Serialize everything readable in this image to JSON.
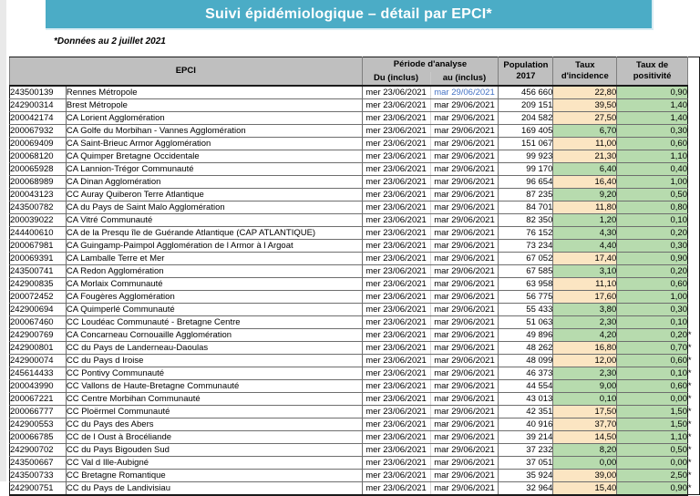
{
  "title": "Suivi épidémiologique – détail par EPCI*",
  "subtitle": "*Données au 2 juillet 2021",
  "colors": {
    "banner": "#4BACC6",
    "header_bg": "#BFBFBF",
    "incidence_alert_fill": "#FBE5C2",
    "rate_ok_fill": "#B7DBAE",
    "highlight_date_blue": "#4472C4"
  },
  "table": {
    "asterisk_symbol": "*",
    "headers": {
      "epci": "EPCI",
      "periode": "Période d'analyse",
      "du": "Du (inclus)",
      "au": "au (inclus)",
      "population_l1": "Population",
      "population_l2": "2017",
      "incidence_l1": "Taux",
      "incidence_l2": "d'incidence",
      "positivite_l1": "Taux de",
      "positivite_l2": "positivité"
    },
    "rows": [
      {
        "code": "243500139",
        "name": "Rennes Métropole",
        "du": "mer 23/06/2021",
        "au": "mar 29/06/2021",
        "au_blue": true,
        "population": "456 660",
        "incidence": "22,80",
        "incidence_level": "high",
        "positivite": "0,90",
        "asterisk": false
      },
      {
        "code": "242900314",
        "name": "Brest Métropole",
        "du": "mer 23/06/2021",
        "au": "mar 29/06/2021",
        "population": "209 151",
        "incidence": "39,50",
        "incidence_level": "high",
        "positivite": "1,40",
        "asterisk": false
      },
      {
        "code": "200042174",
        "name": "CA Lorient Agglomération",
        "du": "mer 23/06/2021",
        "au": "mar 29/06/2021",
        "population": "204 582",
        "incidence": "27,50",
        "incidence_level": "high",
        "positivite": "1,40",
        "asterisk": false
      },
      {
        "code": "200067932",
        "name": "CA Golfe du Morbihan - Vannes Agglomération",
        "du": "mer 23/06/2021",
        "au": "mar 29/06/2021",
        "population": "169 405",
        "incidence": "6,70",
        "incidence_level": "low",
        "positivite": "0,30",
        "asterisk": false
      },
      {
        "code": "200069409",
        "name": "CA Saint-Brieuc Armor Agglomération",
        "du": "mer 23/06/2021",
        "au": "mar 29/06/2021",
        "population": "151 067",
        "incidence": "11,00",
        "incidence_level": "high",
        "positivite": "0,60",
        "asterisk": false
      },
      {
        "code": "200068120",
        "name": "CA Quimper Bretagne Occidentale",
        "du": "mer 23/06/2021",
        "au": "mar 29/06/2021",
        "population": "99 923",
        "incidence": "21,30",
        "incidence_level": "high",
        "positivite": "1,10",
        "asterisk": false
      },
      {
        "code": "200065928",
        "name": "CA Lannion-Trégor Communauté",
        "du": "mer 23/06/2021",
        "au": "mar 29/06/2021",
        "population": "99 170",
        "incidence": "6,40",
        "incidence_level": "low",
        "positivite": "0,40",
        "asterisk": false
      },
      {
        "code": "200068989",
        "name": "CA Dinan Agglomération",
        "du": "mer 23/06/2021",
        "au": "mar 29/06/2021",
        "population": "96 654",
        "incidence": "16,40",
        "incidence_level": "high",
        "positivite": "1,00",
        "asterisk": false
      },
      {
        "code": "200043123",
        "name": "CC Auray Quiberon Terre Atlantique",
        "du": "mer 23/06/2021",
        "au": "mar 29/06/2021",
        "population": "87 235",
        "incidence": "9,20",
        "incidence_level": "low",
        "positivite": "0,50",
        "asterisk": false
      },
      {
        "code": "243500782",
        "name": "CA du Pays de Saint Malo Agglomération",
        "du": "mer 23/06/2021",
        "au": "mar 29/06/2021",
        "population": "84 701",
        "incidence": "11,80",
        "incidence_level": "high",
        "positivite": "0,80",
        "asterisk": false
      },
      {
        "code": "200039022",
        "name": "CA Vitré Communauté",
        "du": "mer 23/06/2021",
        "au": "mar 29/06/2021",
        "population": "82 350",
        "incidence": "1,20",
        "incidence_level": "low",
        "positivite": "0,10",
        "asterisk": false
      },
      {
        "code": "244400610",
        "name": "CA de la Presqu île de Guérande Atlantique (CAP ATLANTIQUE)",
        "du": "mer 23/06/2021",
        "au": "mar 29/06/2021",
        "population": "76 152",
        "incidence": "4,30",
        "incidence_level": "low",
        "positivite": "0,20",
        "asterisk": false
      },
      {
        "code": "200067981",
        "name": "CA Guingamp-Paimpol Agglomération de l Armor à  l Argoat",
        "du": "mer 23/06/2021",
        "au": "mar 29/06/2021",
        "population": "73 234",
        "incidence": "4,40",
        "incidence_level": "low",
        "positivite": "0,30",
        "asterisk": false
      },
      {
        "code": "200069391",
        "name": "CA Lamballe Terre et Mer",
        "du": "mer 23/06/2021",
        "au": "mar 29/06/2021",
        "population": "67 052",
        "incidence": "17,40",
        "incidence_level": "high",
        "positivite": "0,90",
        "asterisk": false
      },
      {
        "code": "243500741",
        "name": "CA Redon Agglomération",
        "du": "mer 23/06/2021",
        "au": "mar 29/06/2021",
        "population": "67 585",
        "incidence": "3,10",
        "incidence_level": "low",
        "positivite": "0,20",
        "asterisk": false
      },
      {
        "code": "242900835",
        "name": "CA Morlaix Communauté",
        "du": "mer 23/06/2021",
        "au": "mar 29/06/2021",
        "population": "63 958",
        "incidence": "11,10",
        "incidence_level": "high",
        "positivite": "0,60",
        "asterisk": false
      },
      {
        "code": "200072452",
        "name": "CA Fougères Agglomération",
        "du": "mer 23/06/2021",
        "au": "mar 29/06/2021",
        "population": "56 775",
        "incidence": "17,60",
        "incidence_level": "high",
        "positivite": "1,00",
        "asterisk": false
      },
      {
        "code": "242900694",
        "name": "CA Quimperlé Communauté",
        "du": "mer 23/06/2021",
        "au": "mar 29/06/2021",
        "population": "55 433",
        "incidence": "3,80",
        "incidence_level": "low",
        "positivite": "0,30",
        "asterisk": false
      },
      {
        "code": "200067460",
        "name": "CC Loudéac Communauté - Bretagne Centre",
        "du": "mer 23/06/2021",
        "au": "mar 29/06/2021",
        "population": "51 063",
        "incidence": "2,30",
        "incidence_level": "low",
        "positivite": "0,10",
        "asterisk": false
      },
      {
        "code": "242900769",
        "name": "CA Concarneau Cornouaille Agglomération",
        "du": "mer 23/06/2021",
        "au": "mar 29/06/2021",
        "population": "49 896",
        "incidence": "4,20",
        "incidence_level": "low",
        "positivite": "0,20",
        "asterisk": true
      },
      {
        "code": "242900801",
        "name": "CC du Pays de Landerneau-Daoulas",
        "du": "mer 23/06/2021",
        "au": "mar 29/06/2021",
        "population": "48 262",
        "incidence": "16,80",
        "incidence_level": "high",
        "positivite": "0,70",
        "asterisk": true
      },
      {
        "code": "242900074",
        "name": "CC du Pays d Iroise",
        "du": "mer 23/06/2021",
        "au": "mar 29/06/2021",
        "population": "48 099",
        "incidence": "12,00",
        "incidence_level": "high",
        "positivite": "0,60",
        "asterisk": true
      },
      {
        "code": "245614433",
        "name": "CC Pontivy Communauté",
        "du": "mer 23/06/2021",
        "au": "mar 29/06/2021",
        "population": "46 373",
        "incidence": "2,30",
        "incidence_level": "low",
        "positivite": "0,10",
        "asterisk": true
      },
      {
        "code": "200043990",
        "name": "CC Vallons de Haute-Bretagne Communauté",
        "du": "mer 23/06/2021",
        "au": "mar 29/06/2021",
        "population": "44 554",
        "incidence": "9,00",
        "incidence_level": "low",
        "positivite": "0,60",
        "asterisk": true
      },
      {
        "code": "200067221",
        "name": "CC Centre Morbihan Communauté",
        "du": "mer 23/06/2021",
        "au": "mar 29/06/2021",
        "population": "43 013",
        "incidence": "0,10",
        "incidence_level": "low",
        "positivite": "0,00",
        "asterisk": true
      },
      {
        "code": "200066777",
        "name": "CC Ploërmel Communauté",
        "du": "mer 23/06/2021",
        "au": "mar 29/06/2021",
        "population": "42 351",
        "incidence": "17,50",
        "incidence_level": "high",
        "positivite": "1,50",
        "asterisk": true
      },
      {
        "code": "242900553",
        "name": "CC du Pays des Abers",
        "du": "mer 23/06/2021",
        "au": "mar 29/06/2021",
        "population": "40 916",
        "incidence": "37,70",
        "incidence_level": "high",
        "positivite": "1,50",
        "asterisk": true
      },
      {
        "code": "200066785",
        "name": "CC de l Oust à  Brocéliande",
        "du": "mer 23/06/2021",
        "au": "mar 29/06/2021",
        "population": "39 214",
        "incidence": "14,50",
        "incidence_level": "high",
        "positivite": "1,10",
        "asterisk": true
      },
      {
        "code": "242900702",
        "name": "CC du Pays Bigouden Sud",
        "du": "mer 23/06/2021",
        "au": "mar 29/06/2021",
        "population": "37 232",
        "incidence": "8,20",
        "incidence_level": "low",
        "positivite": "0,50",
        "asterisk": true
      },
      {
        "code": "243500667",
        "name": "CC Val d Ille-Aubigné",
        "du": "mer 23/06/2021",
        "au": "mar 29/06/2021",
        "population": "37 051",
        "incidence": "0,00",
        "incidence_level": "low",
        "positivite": "0,00",
        "asterisk": true
      },
      {
        "code": "243500733",
        "name": "CC Bretagne Romantique",
        "du": "mer 23/06/2021",
        "au": "mar 29/06/2021",
        "population": "35 924",
        "incidence": "39,00",
        "incidence_level": "high",
        "positivite": "2,50",
        "asterisk": true
      },
      {
        "code": "242900751",
        "name": "CC du Pays de Landivisiau",
        "du": "mer 23/06/2021",
        "au": "mar 29/06/2021",
        "population": "32 964",
        "incidence": "15,40",
        "incidence_level": "high",
        "positivite": "0,90",
        "asterisk": true
      }
    ]
  }
}
